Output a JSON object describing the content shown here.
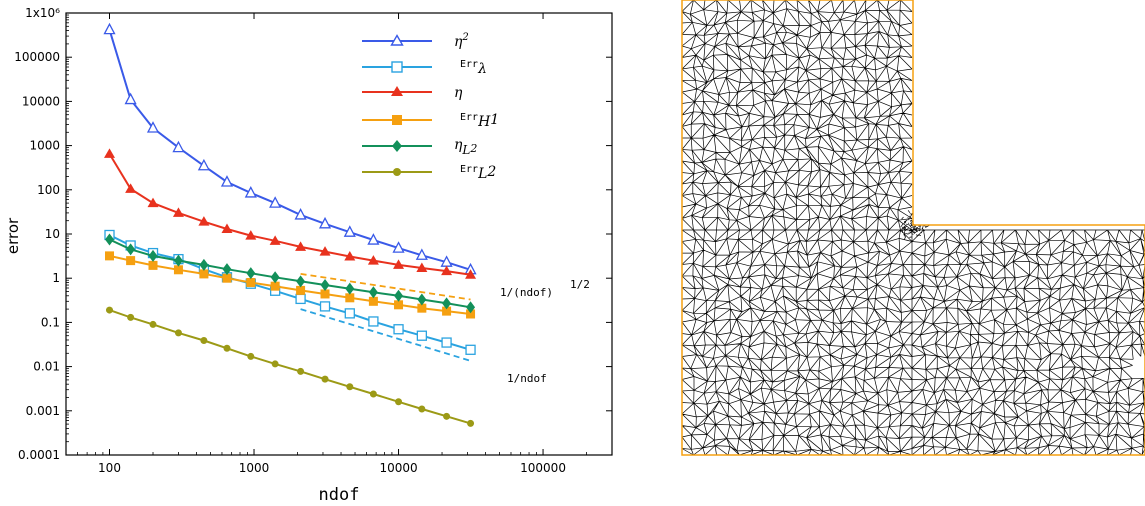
{
  "chart_data": {
    "type": "line",
    "xlabel": "ndof",
    "ylabel": "error",
    "xscale": "log",
    "yscale": "log",
    "xlim": [
      50,
      300000
    ],
    "ylim": [
      0.0001,
      1000000
    ],
    "xticks": [
      "100",
      "1000",
      "10000",
      "100000"
    ],
    "yticks": [
      "0.0001",
      "0.001",
      "0.01",
      "0.1",
      "1",
      "10",
      "100",
      "1000",
      "10000",
      "100000",
      "1x10⁶"
    ],
    "legend_position": "top-right",
    "x": [
      100,
      140,
      200,
      300,
      450,
      650,
      950,
      1400,
      2100,
      3100,
      4600,
      6700,
      10000,
      14500,
      21500,
      31500
    ],
    "series": [
      {
        "name": "η²",
        "color": "#3a5ae8",
        "marker": "triangle-open",
        "values": [
          420000,
          11000,
          2500,
          900,
          350,
          150,
          85,
          50,
          27,
          17,
          11,
          7.3,
          4.8,
          3.3,
          2.3,
          1.55
        ]
      },
      {
        "name": "Errλ",
        "color": "#2aa3e0",
        "marker": "square-open",
        "values": [
          9.5,
          5.5,
          3.7,
          2.7,
          1.6,
          1.05,
          0.75,
          0.52,
          0.34,
          0.23,
          0.16,
          0.105,
          0.07,
          0.05,
          0.035,
          0.024
        ]
      },
      {
        "name": "η",
        "color": "#e8321e",
        "marker": "triangle-filled",
        "values": [
          650,
          105,
          50,
          30,
          19,
          13,
          9.2,
          7.0,
          5.1,
          4.0,
          3.1,
          2.5,
          2.0,
          1.7,
          1.45,
          1.2
        ]
      },
      {
        "name": "Err H1",
        "color": "#f5a011",
        "marker": "square-filled",
        "values": [
          3.2,
          2.5,
          1.95,
          1.55,
          1.25,
          1.0,
          0.8,
          0.66,
          0.53,
          0.44,
          0.36,
          0.3,
          0.25,
          0.21,
          0.18,
          0.155
        ]
      },
      {
        "name": "η L2",
        "color": "#13905a",
        "marker": "diamond-filled",
        "values": [
          7.5,
          4.5,
          3.2,
          2.5,
          2.0,
          1.6,
          1.3,
          1.05,
          0.85,
          0.7,
          0.58,
          0.48,
          0.4,
          0.33,
          0.27,
          0.22
        ]
      },
      {
        "name": "Err L2",
        "color": "#9c9a16",
        "marker": "circle-filled",
        "values": [
          0.19,
          0.13,
          0.09,
          0.058,
          0.039,
          0.026,
          0.017,
          0.0115,
          0.0078,
          0.0052,
          0.0035,
          0.0024,
          0.0016,
          0.0011,
          0.00075,
          0.00052
        ]
      }
    ],
    "reference_lines": [
      {
        "label_text": "1/(ndof)",
        "exponent": "1/2",
        "color": "#f5a011",
        "style": "dashed",
        "x": [
          2100,
          31500
        ],
        "y": [
          1.25,
          0.33
        ]
      },
      {
        "label_text": "1/ndof",
        "color": "#2aa3e0",
        "style": "dashed",
        "x": [
          2100,
          31500
        ],
        "y": [
          0.2,
          0.0135
        ]
      }
    ]
  },
  "legend": {
    "eta2": {
      "base": "η",
      "sup": "2"
    },
    "err_lambda": {
      "base": "Err",
      "sub": "λ"
    },
    "eta": {
      "base": "η"
    },
    "err_h1": {
      "base": "Err",
      "sub": "H",
      "subsup": "1"
    },
    "eta_l2": {
      "base": "η",
      "sub": "L",
      "subsup": "2"
    },
    "err_l2": {
      "base": "Err",
      "sub": "L",
      "subsup": "2"
    }
  },
  "mesh_panel": {
    "shape": "L-shaped domain",
    "mesh": "triangulation",
    "line_color": "#000000",
    "border_color": "#f5a011",
    "refinement": "re-entrant corner"
  }
}
